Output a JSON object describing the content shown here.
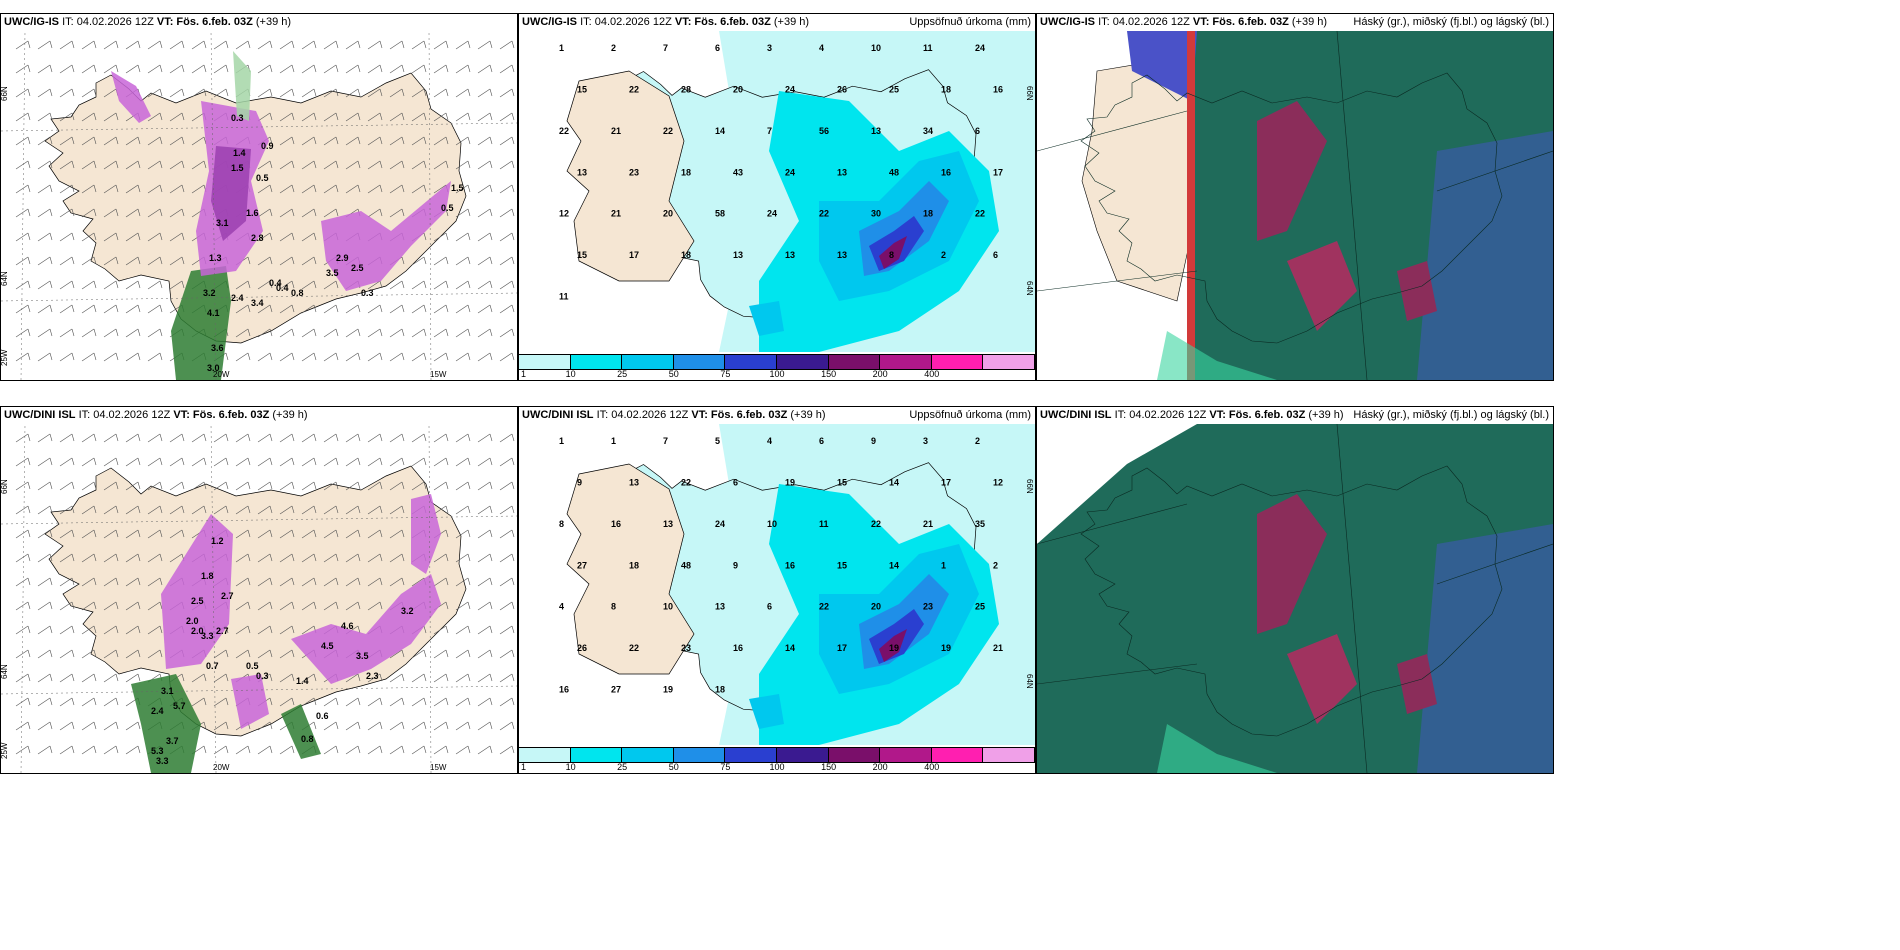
{
  "panels": [
    {
      "id": "p1",
      "model": "UWC/IG-IS",
      "it": "IT: 04.02.2026 12Z",
      "vt": "VT: Fös. 6.feb. 03Z",
      "lead": "(+39 h)",
      "right": "",
      "axes": [
        "66N",
        "64N",
        "25W",
        "20W",
        "15W"
      ],
      "labels": [
        "0.3",
        "1.4",
        "1.5",
        "1.6",
        "3.1",
        "2.8",
        "3.2",
        "4.1",
        "3.6",
        "3.0",
        "0.4",
        "2.9",
        "2.5",
        "0.5",
        "1.5",
        "0.8",
        "2.4",
        "1.3",
        "0.9",
        "0.5",
        "3.4",
        "0.4",
        "0.3",
        "3.5"
      ]
    },
    {
      "id": "p2",
      "model": "UWC/IG-IS",
      "it": "IT: 04.02.2026 12Z",
      "vt": "VT: Fös. 6.feb. 03Z",
      "lead": "(+39 h)",
      "right": "Uppsöfnuð úrkoma (mm)",
      "axes": [
        "66N",
        "64N"
      ],
      "labels": [
        "1",
        "2",
        "7",
        "6",
        "3",
        "4",
        "10",
        "11",
        "24",
        "15",
        "22",
        "28",
        "20",
        "24",
        "26",
        "25",
        "18",
        "16",
        "22",
        "21",
        "22",
        "14",
        "7",
        "56",
        "13",
        "34",
        "6",
        "13",
        "23",
        "18",
        "43",
        "24",
        "13",
        "48",
        "16",
        "17",
        "12",
        "21",
        "20",
        "58",
        "24",
        "22",
        "30",
        "18",
        "22",
        "15",
        "17",
        "18",
        "13",
        "13",
        "13",
        "8",
        "2",
        "6",
        "11"
      ]
    },
    {
      "id": "p3",
      "model": "UWC/IG-IS",
      "it": "IT: 04.02.2026 12Z",
      "vt": "VT: Fös. 6.feb. 03Z",
      "lead": "(+39 h)",
      "right": "Háský (gr.), miðský (fj.bl.) og lágský (bl.)",
      "axes": [],
      "labels": []
    },
    {
      "id": "p4",
      "model": "UWC/DINI ISL",
      "it": "IT: 04.02.2026 12Z",
      "vt": "VT: Fös. 6.feb. 03Z",
      "lead": "(+39 h)",
      "right": "",
      "axes": [
        "66N",
        "64N",
        "25W",
        "20W",
        "15W"
      ],
      "labels": [
        "1.2",
        "1.8",
        "2.5",
        "2.0",
        "2.7",
        "2.0",
        "3.3",
        "2.7",
        "0.7",
        "3.1",
        "5.7",
        "2.4",
        "3.7",
        "5.3",
        "3.3",
        "0.5",
        "0.3",
        "1.4",
        "4.5",
        "3.5",
        "2.3",
        "0.6",
        "0.8",
        "4.6",
        "3.2"
      ]
    },
    {
      "id": "p5",
      "model": "UWC/DINI ISL",
      "it": "IT: 04.02.2026 12Z",
      "vt": "VT: Fös. 6.feb. 03Z",
      "lead": "(+39 h)",
      "right": "Uppsöfnuð úrkoma (mm)",
      "axes": [
        "66N",
        "64N"
      ],
      "labels": [
        "1",
        "1",
        "7",
        "5",
        "4",
        "6",
        "9",
        "3",
        "2",
        "9",
        "13",
        "22",
        "6",
        "19",
        "15",
        "14",
        "17",
        "12",
        "8",
        "16",
        "13",
        "24",
        "10",
        "11",
        "22",
        "21",
        "35",
        "27",
        "18",
        "48",
        "9",
        "16",
        "15",
        "14",
        "1",
        "2",
        "4",
        "8",
        "10",
        "13",
        "6",
        "22",
        "20",
        "23",
        "25",
        "26",
        "22",
        "23",
        "16",
        "14",
        "17",
        "19",
        "19",
        "21",
        "16",
        "27",
        "19",
        "18"
      ]
    },
    {
      "id": "p6",
      "model": "UWC/DINI ISL",
      "it": "IT: 04.02.2026 12Z",
      "vt": "VT: Fös. 6.feb. 03Z",
      "lead": "(+39 h)",
      "right": "Háský (gr.), miðský (fj.bl.) og lágský (bl.)",
      "axes": [],
      "labels": []
    }
  ],
  "colorbar": {
    "ticks": [
      "1",
      "10",
      "25",
      "50",
      "75",
      "100",
      "150",
      "200",
      "400"
    ],
    "colors": [
      "#c6f7f7",
      "#00e5ee",
      "#00c8ee",
      "#1f8fe8",
      "#2a3fd0",
      "#3a1a90",
      "#7a0f6a",
      "#b1188a",
      "#ff1fb0",
      "#f0a0e8"
    ]
  }
}
